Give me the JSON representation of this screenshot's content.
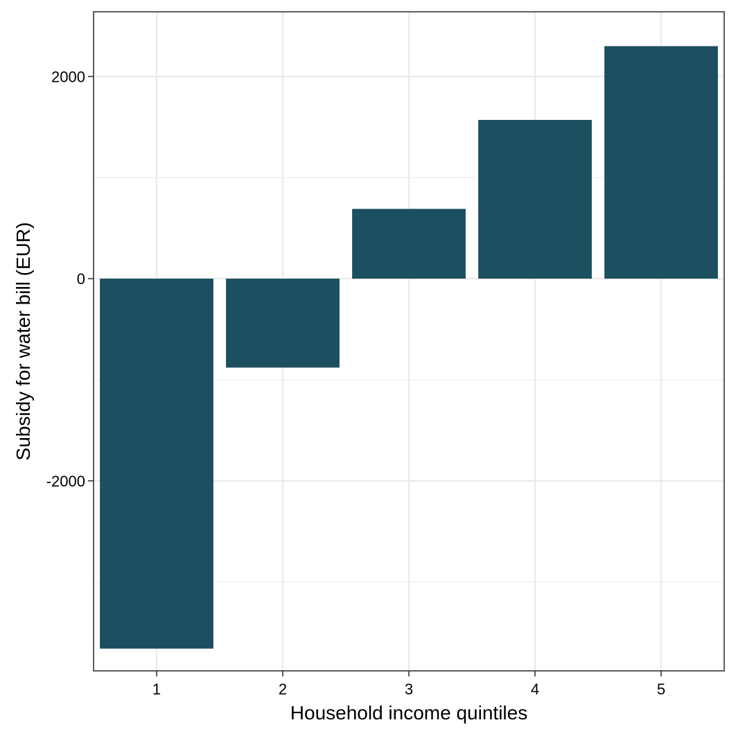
{
  "chart_data": {
    "type": "bar",
    "xlabel": "Household income quintiles",
    "ylabel": "Subsidy for water bill (EUR)",
    "categories": [
      "1",
      "2",
      "3",
      "4",
      "5"
    ],
    "values": [
      -3660,
      -880,
      690,
      1570,
      2300
    ],
    "ylim": [
      -3880,
      2640
    ],
    "yticks": [
      -2000,
      0,
      2000
    ],
    "ytick_labels": [
      "-2000",
      "0",
      "2000"
    ],
    "grid": true,
    "bar_color": "#1c4f60",
    "grid_color": "#ebebeb",
    "panel_border_color": "#333333"
  }
}
